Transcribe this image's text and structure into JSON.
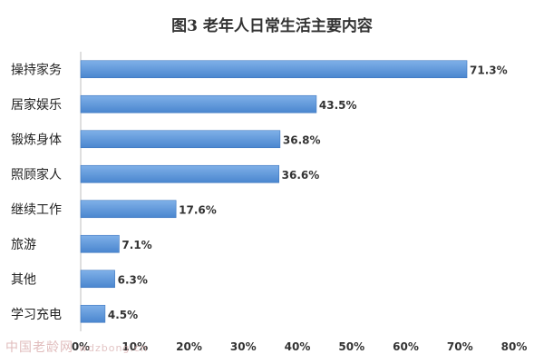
{
  "chart_data": {
    "type": "bar",
    "orientation": "horizontal",
    "title": "图3 老年人日常生活主要内容",
    "categories": [
      "操持家务",
      "居家娱乐",
      "锻炼身体",
      "照顾家人",
      "继续工作",
      "旅游",
      "其他",
      "学习充电"
    ],
    "values": [
      71.3,
      43.5,
      36.8,
      36.6,
      17.6,
      7.1,
      6.3,
      4.5
    ],
    "value_labels": [
      "71.3%",
      "43.5%",
      "36.8%",
      "36.6%",
      "17.6%",
      "7.1%",
      "6.3%",
      "4.5%"
    ],
    "x_ticks": [
      "0%",
      "10%",
      "20%",
      "30%",
      "40%",
      "50%",
      "60%",
      "70%",
      "80%"
    ],
    "xlim": [
      0,
      80
    ],
    "xlabel": "",
    "ylabel": "",
    "grid": false,
    "bar_color": "#4a86cf",
    "bar_color_light": "#7fb0e8"
  },
  "watermark": {
    "site": "中国老龄网",
    "domain": "wdzbong.cn"
  }
}
